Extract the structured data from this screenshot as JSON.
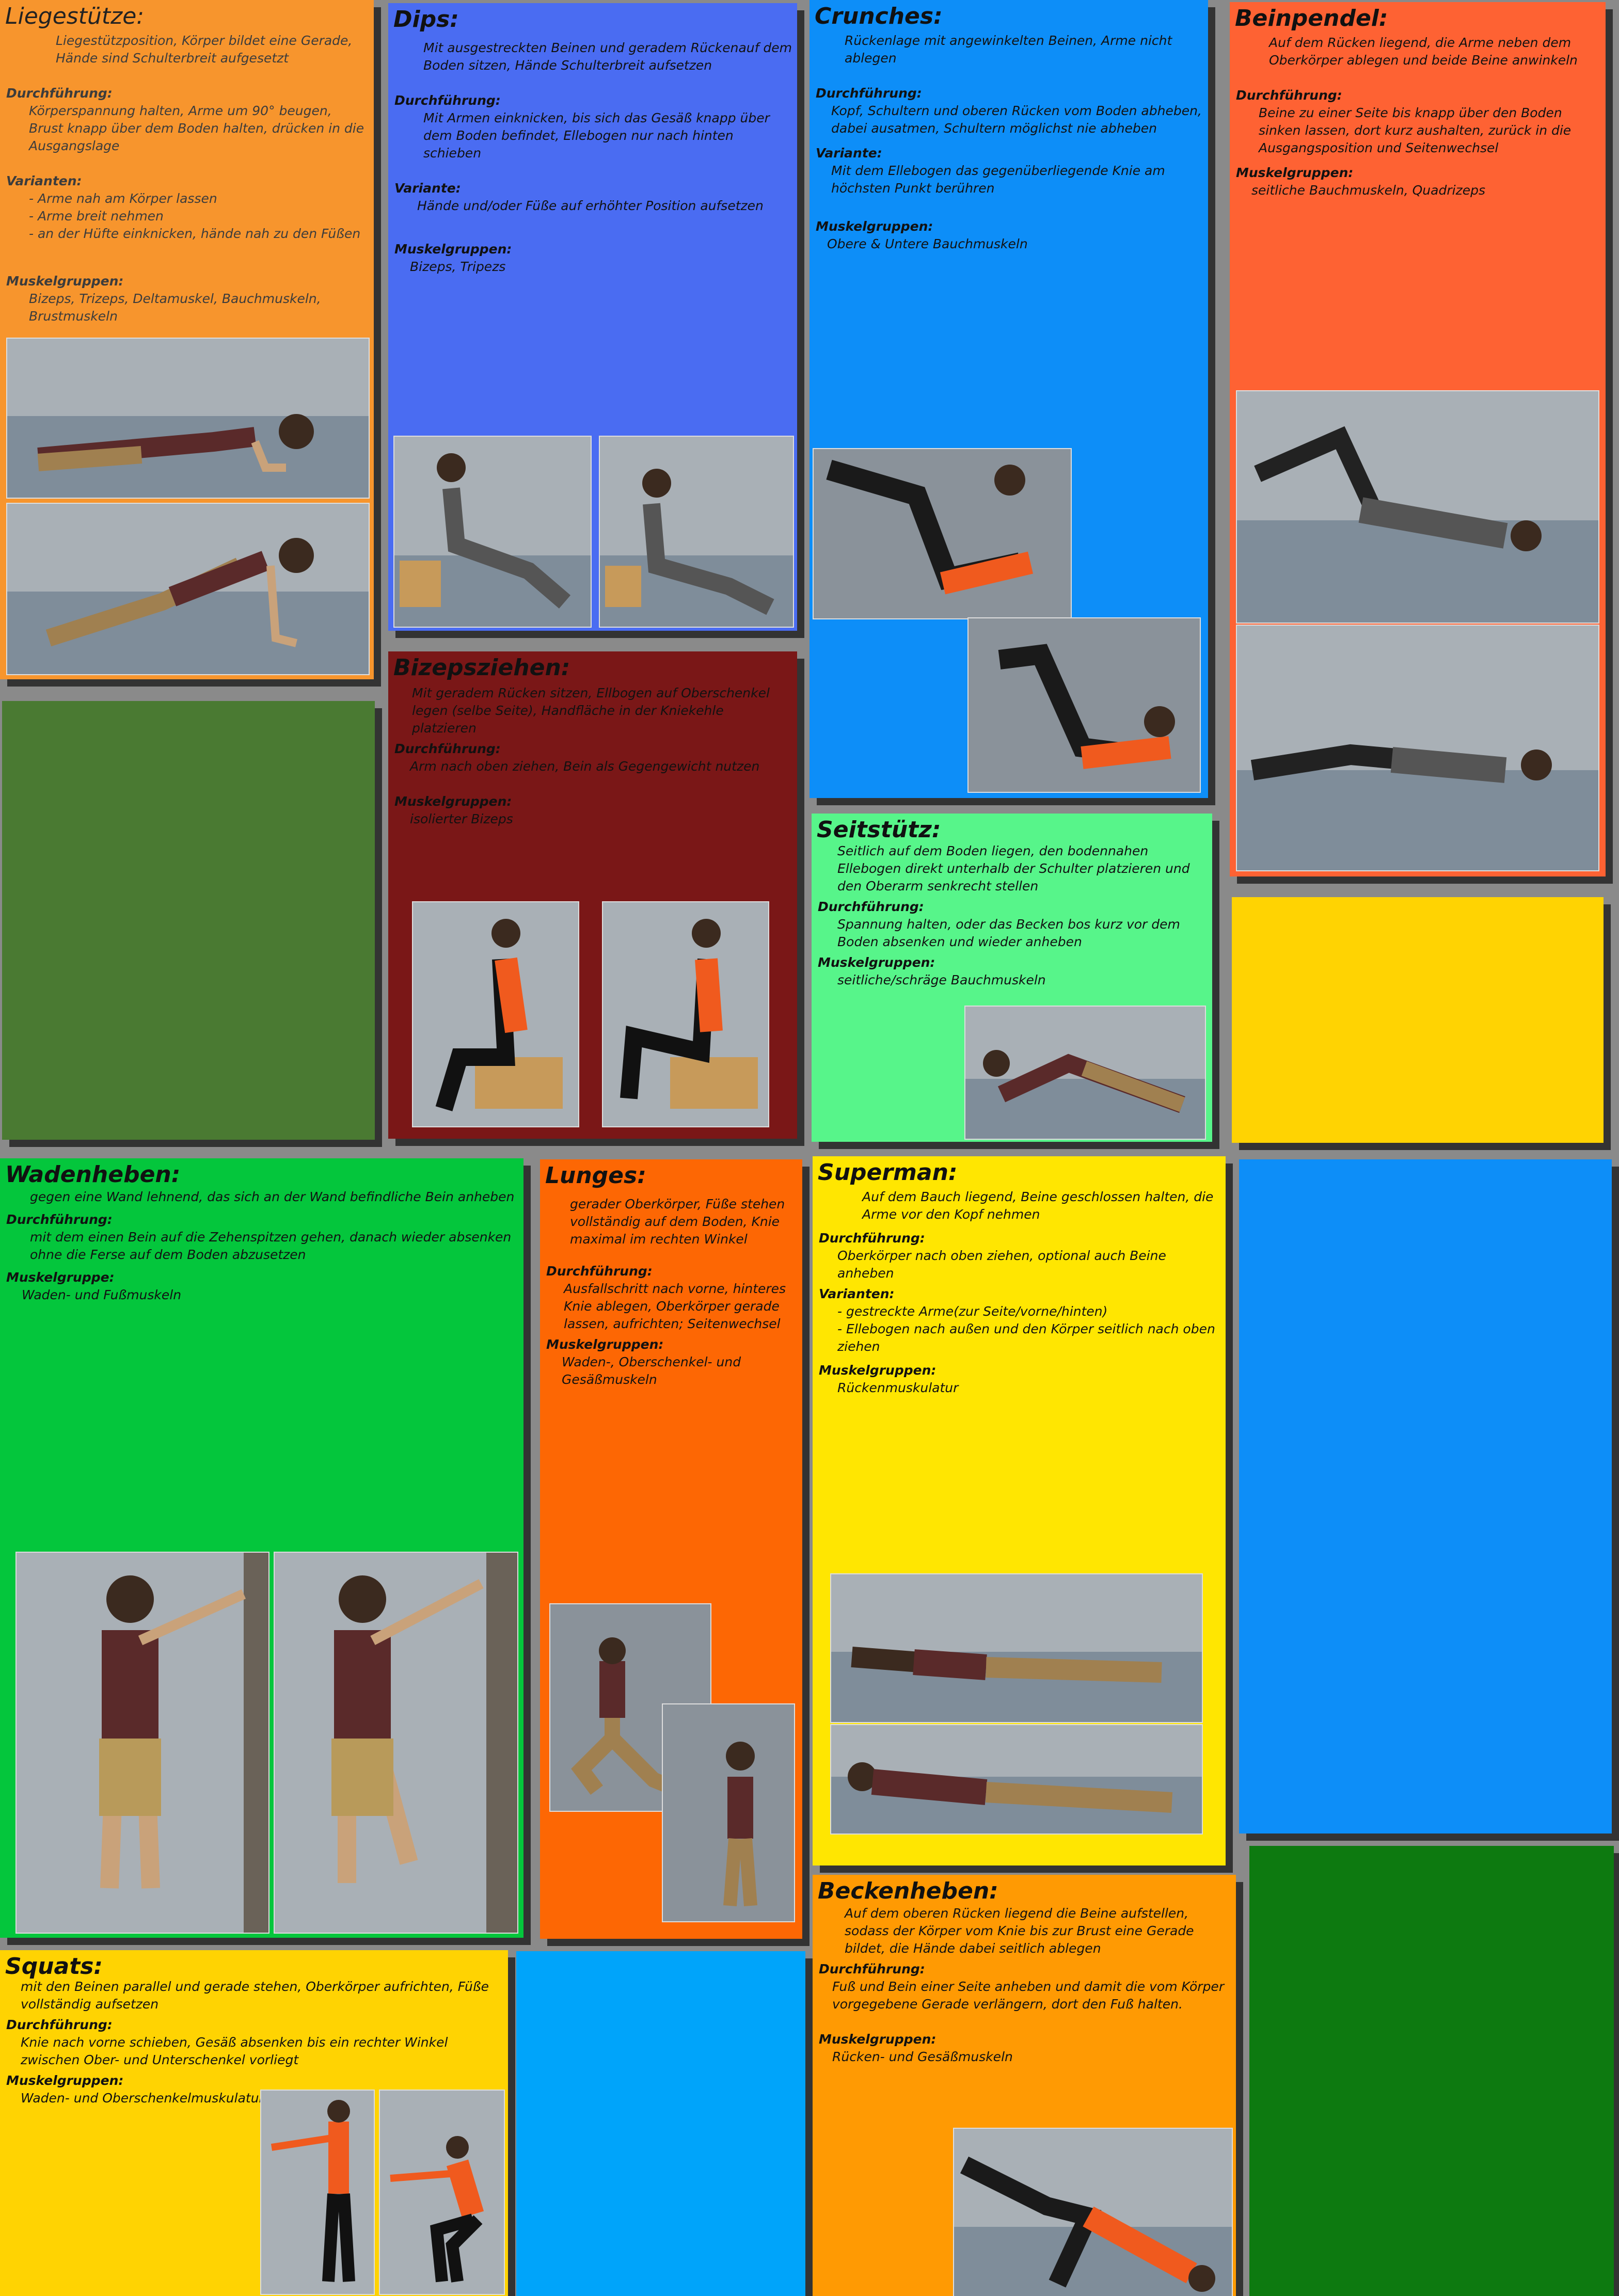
{
  "cards": {
    "liegestuetze": {
      "title": "Liegestütze:",
      "desc": "Liegestützposition, Körper bildet eine Gerade, Hände sind Schulterbreit aufgesetzt",
      "durch_label": "Durchführung:",
      "durch": "Körperspannung halten, Arme um 90° beugen, Brust knapp über dem Boden halten, drücken in die Ausgangslage",
      "var_label": "Varianten:",
      "var1": "- Arme nah am Körper lassen",
      "var2": "- Arme breit nehmen",
      "var3": "- an der Hüfte einknicken, hände nah zu den Füßen",
      "muskel_label": "Muskelgruppen:",
      "muskel": "Bizeps, Trizeps, Deltamuskel, Bauchmuskeln, Brustmuskeln"
    },
    "dips": {
      "title": "Dips:",
      "desc": "Mit ausgestreckten Beinen und geradem Rückenauf dem Boden sitzen, Hände Schulterbreit aufsetzen",
      "durch_label": "Durchführung:",
      "durch": "Mit Armen einknicken, bis sich das Gesäß knapp über dem Boden befindet, Ellebogen nur nach hinten schieben",
      "var_label": "Variante:",
      "var": "Hände und/oder Füße auf erhöhter Position aufsetzen",
      "muskel_label": "Muskelgruppen:",
      "muskel": "Bizeps, Tripezs"
    },
    "crunches": {
      "title": "Crunches:",
      "desc": "Rückenlage mit angewinkelten Beinen, Arme nicht ablegen",
      "durch_label": "Durchführung:",
      "durch": "Kopf, Schultern und oberen Rücken vom Boden abheben, dabei ausatmen, Schultern möglichst nie abheben",
      "var_label": "Variante:",
      "var": "Mit dem Ellebogen das gegenüberliegende Knie am höchsten Punkt berühren",
      "muskel_label": "Muskelgruppen:",
      "muskel": "Obere & Untere Bauchmuskeln"
    },
    "beinpendel": {
      "title": "Beinpendel:",
      "desc": "Auf dem Rücken liegend, die Arme neben dem Oberkörper ablegen und beide Beine anwinkeln",
      "durch_label": "Durchführung:",
      "durch": "Beine zu einer Seite bis knapp über den Boden sinken lassen, dort kurz aushalten, zurück in die Ausgangsposition und Seitenwechsel",
      "muskel_label": "Muskelgruppen:",
      "muskel": "seitliche Bauchmuskeln, Quadrizeps"
    },
    "bizepsziehen": {
      "title": "Bizepsziehen:",
      "desc": "Mit geradem Rücken sitzen, Ellbogen auf Oberschenkel legen (selbe Seite), Handfläche in der Kniekehle platzieren",
      "durch_label": "Durchführung:",
      "durch": "Arm nach oben ziehen, Bein als Gegengewicht nutzen",
      "muskel_label": "Muskelgruppen:",
      "muskel": "isolierter Bizeps"
    },
    "seitstuetz": {
      "title": "Seitstütz:",
      "desc": "Seitlich auf dem Boden liegen, den bodennahen Ellebogen direkt unterhalb der Schulter platzieren und den Oberarm senkrecht stellen",
      "durch_label": "Durchführung:",
      "durch": "Spannung halten, oder das Becken bos kurz vor dem Boden absenken und wieder anheben",
      "muskel_label": "Muskelgruppen:",
      "muskel": "seitliche/schräge Bauchmuskeln"
    },
    "wadenheben": {
      "title": "Wadenheben:",
      "desc": "gegen eine Wand lehnend, das sich an der Wand befindliche Bein anheben",
      "durch_label": "Durchführung:",
      "durch": "mit dem einen Bein auf die Zehenspitzen gehen, danach wieder absenken ohne die Ferse auf dem Boden abzusetzen",
      "muskel_label": "Muskelgruppe:",
      "muskel": "Waden- und Fußmuskeln"
    },
    "lunges": {
      "title": "Lunges:",
      "desc": "gerader Oberkörper, Füße stehen vollständig auf dem Boden, Knie maximal im rechten Winkel",
      "durch_label": "Durchführung:",
      "durch": "Ausfallschritt nach vorne, hinteres Knie ablegen, Oberkörper gerade lassen, aufrichten; Seitenwechsel",
      "muskel_label": "Muskelgruppen:",
      "muskel": "Waden-, Oberschenkel- und Gesäßmuskeln"
    },
    "superman": {
      "title": "Superman:",
      "desc": "Auf dem Bauch liegend, Beine geschlossen halten, die Arme vor den Kopf nehmen",
      "durch_label": "Durchführung:",
      "durch": "Oberkörper nach oben ziehen, optional auch Beine anheben",
      "var_label": "Varianten:",
      "var1": "- gestreckte Arme(zur Seite/vorne/hinten)",
      "var2": "- Ellebogen nach außen und den Körper seitlich nach oben ziehen",
      "muskel_label": "Muskelgruppen:",
      "muskel": "Rückenmuskulatur"
    },
    "squats": {
      "title": "Squats:",
      "desc": "mit den Beinen parallel und gerade stehen, Oberkörper aufrichten, Füße vollständig aufsetzen",
      "durch_label": "Durchführung:",
      "durch": "Knie nach vorne schieben, Gesäß absenken bis ein rechter Winkel zwischen Ober- und Unterschenkel vorliegt",
      "muskel_label": "Muskelgruppen:",
      "muskel": "Waden- und Oberschenkelmuskulatur"
    },
    "beckenheben": {
      "title": "Beckenheben:",
      "desc": "Auf dem oberen Rücken liegend die Beine aufstellen, sodass der Körper vom Knie bis zur Brust eine Gerade bildet, die Hände dabei seitlich ablegen",
      "durch_label": "Durchführung:",
      "durch": "Fuß und Bein einer Seite anheben und damit die vom Körper vorgegebene Gerade verlängern, dort den Fuß halten.",
      "muskel_label": "Muskelgruppen:",
      "muskel": "Rücken- und Gesäßmuskeln"
    }
  },
  "colors": {
    "orange": "#f7952d",
    "blue": "#4a6cf2",
    "skyblue": "#0d8ef8",
    "red_orange": "#fe6233",
    "maroon": "#7a1717",
    "mint": "#57f58a",
    "green": "#04c63c",
    "dark_orange": "#fd6704",
    "yellow": "#ffe601",
    "gold": "#ffd302",
    "amber": "#ff9a03",
    "olive_green": "#4a7a32",
    "dark_green": "#0d7a10",
    "cyan": "#00a4fa"
  }
}
